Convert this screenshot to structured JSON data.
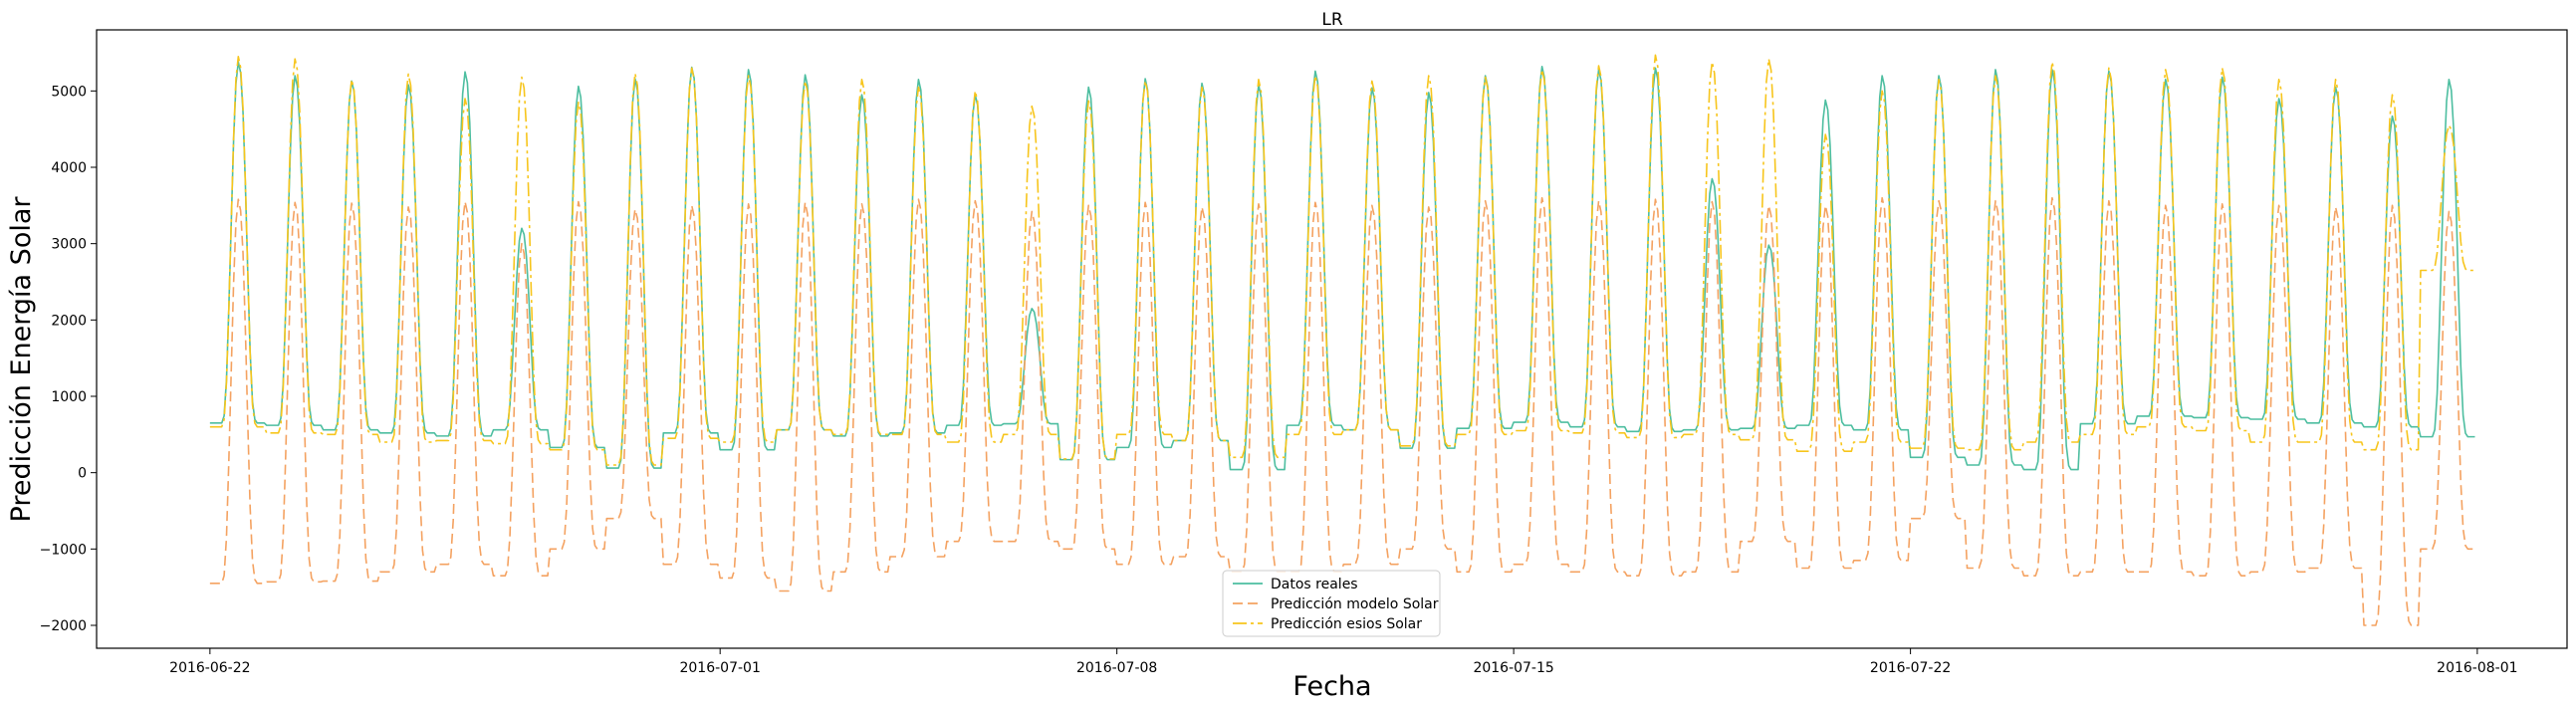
{
  "chart_data": {
    "type": "line",
    "title": "LR",
    "xlabel": "Fecha",
    "ylabel": "Predicción Energía Solar",
    "x_range": [
      "2016-06-20T00:00",
      "2016-08-02T14:00"
    ],
    "ylim": [
      -2300,
      5800
    ],
    "y_ticks": [
      -2000,
      -1000,
      0,
      1000,
      2000,
      3000,
      4000,
      5000
    ],
    "x_ticks": [
      "2016-06-22",
      "2016-07-01",
      "2016-07-08",
      "2016-07-15",
      "2016-07-22",
      "2016-08-01"
    ],
    "grid": false,
    "legend_position": "lower center",
    "x_start": "2016-06-22T00:00",
    "x_end": "2016-07-31T23:00",
    "profile_hours": [
      0,
      2,
      4,
      5,
      6,
      7,
      8,
      9,
      10,
      11,
      12,
      13,
      14,
      15,
      16,
      17,
      18,
      19,
      20,
      21,
      23
    ],
    "profile_weights": [
      0,
      0,
      0,
      0,
      0.02,
      0.12,
      0.32,
      0.55,
      0.78,
      0.94,
      1,
      0.97,
      0.86,
      0.66,
      0.42,
      0.2,
      0.06,
      0.01,
      0,
      0,
      0
    ],
    "series": [
      {
        "name": "Datos reales",
        "color": "#4dbea0",
        "dash": "",
        "night": [
          650,
          620,
          560,
          520,
          480,
          560,
          330,
          60,
          520,
          300,
          560,
          480,
          520,
          620,
          640,
          170,
          330,
          420,
          40,
          620,
          560,
          320,
          580,
          660,
          600,
          540,
          560,
          580,
          620,
          560,
          200,
          100,
          40,
          640,
          740,
          720,
          700,
          650,
          600,
          470
        ],
        "peak": [
          5380,
          5200,
          5130,
          5080,
          5250,
          3200,
          5060,
          5160,
          5310,
          5280,
          5210,
          4950,
          5150,
          4950,
          2150,
          5050,
          5160,
          5100,
          5080,
          5260,
          5040,
          4980,
          5200,
          5320,
          5280,
          5300,
          3850,
          2980,
          4880,
          5200,
          5200,
          5280,
          5280,
          5260,
          5150,
          5180,
          4900,
          5050,
          4670,
          5150
        ]
      },
      {
        "name": "Predicción modelo Solar",
        "color": "#f4a261",
        "dash": "10,5",
        "night": [
          -1450,
          -1430,
          -1420,
          -1300,
          -1200,
          -1350,
          -1000,
          -600,
          -1200,
          -1380,
          -1550,
          -1300,
          -1100,
          -900,
          -900,
          -1000,
          -1200,
          -1100,
          -1300,
          -1300,
          -1200,
          -1000,
          -1300,
          -1200,
          -1300,
          -1350,
          -1300,
          -900,
          -1250,
          -1150,
          -600,
          -1250,
          -1350,
          -1300,
          -1300,
          -1350,
          -1300,
          -1250,
          -2000,
          -1000
        ],
        "peak": [
          3580,
          3540,
          3530,
          3480,
          3550,
          3000,
          3550,
          3450,
          3500,
          3520,
          3540,
          3520,
          3580,
          3560,
          3420,
          3500,
          3540,
          3480,
          3520,
          3540,
          3500,
          3480,
          3560,
          3600,
          3560,
          3580,
          3550,
          3500,
          3500,
          3600,
          3560,
          3560,
          3600,
          3560,
          3500,
          3520,
          3500,
          3480,
          3500,
          3420
        ]
      },
      {
        "name": "Predicción esios Solar",
        "color": "#f7c51c",
        "dash": "14,4,3,4",
        "night": [
          600,
          520,
          500,
          400,
          420,
          380,
          300,
          100,
          450,
          400,
          560,
          500,
          500,
          400,
          500,
          180,
          500,
          420,
          200,
          500,
          560,
          350,
          500,
          550,
          520,
          460,
          500,
          430,
          280,
          400,
          320,
          300,
          400,
          500,
          600,
          550,
          400,
          400,
          300,
          2650
        ],
        "peak": [
          5450,
          5420,
          5150,
          5220,
          4900,
          5180,
          4850,
          5230,
          5300,
          5200,
          5130,
          5150,
          5050,
          5000,
          4800,
          4870,
          5130,
          5050,
          5150,
          5200,
          5130,
          5200,
          5180,
          5280,
          5330,
          5470,
          5380,
          5420,
          4430,
          5000,
          5150,
          5200,
          5380,
          5300,
          5280,
          5300,
          5150,
          5150,
          4950,
          4550
        ]
      }
    ]
  }
}
